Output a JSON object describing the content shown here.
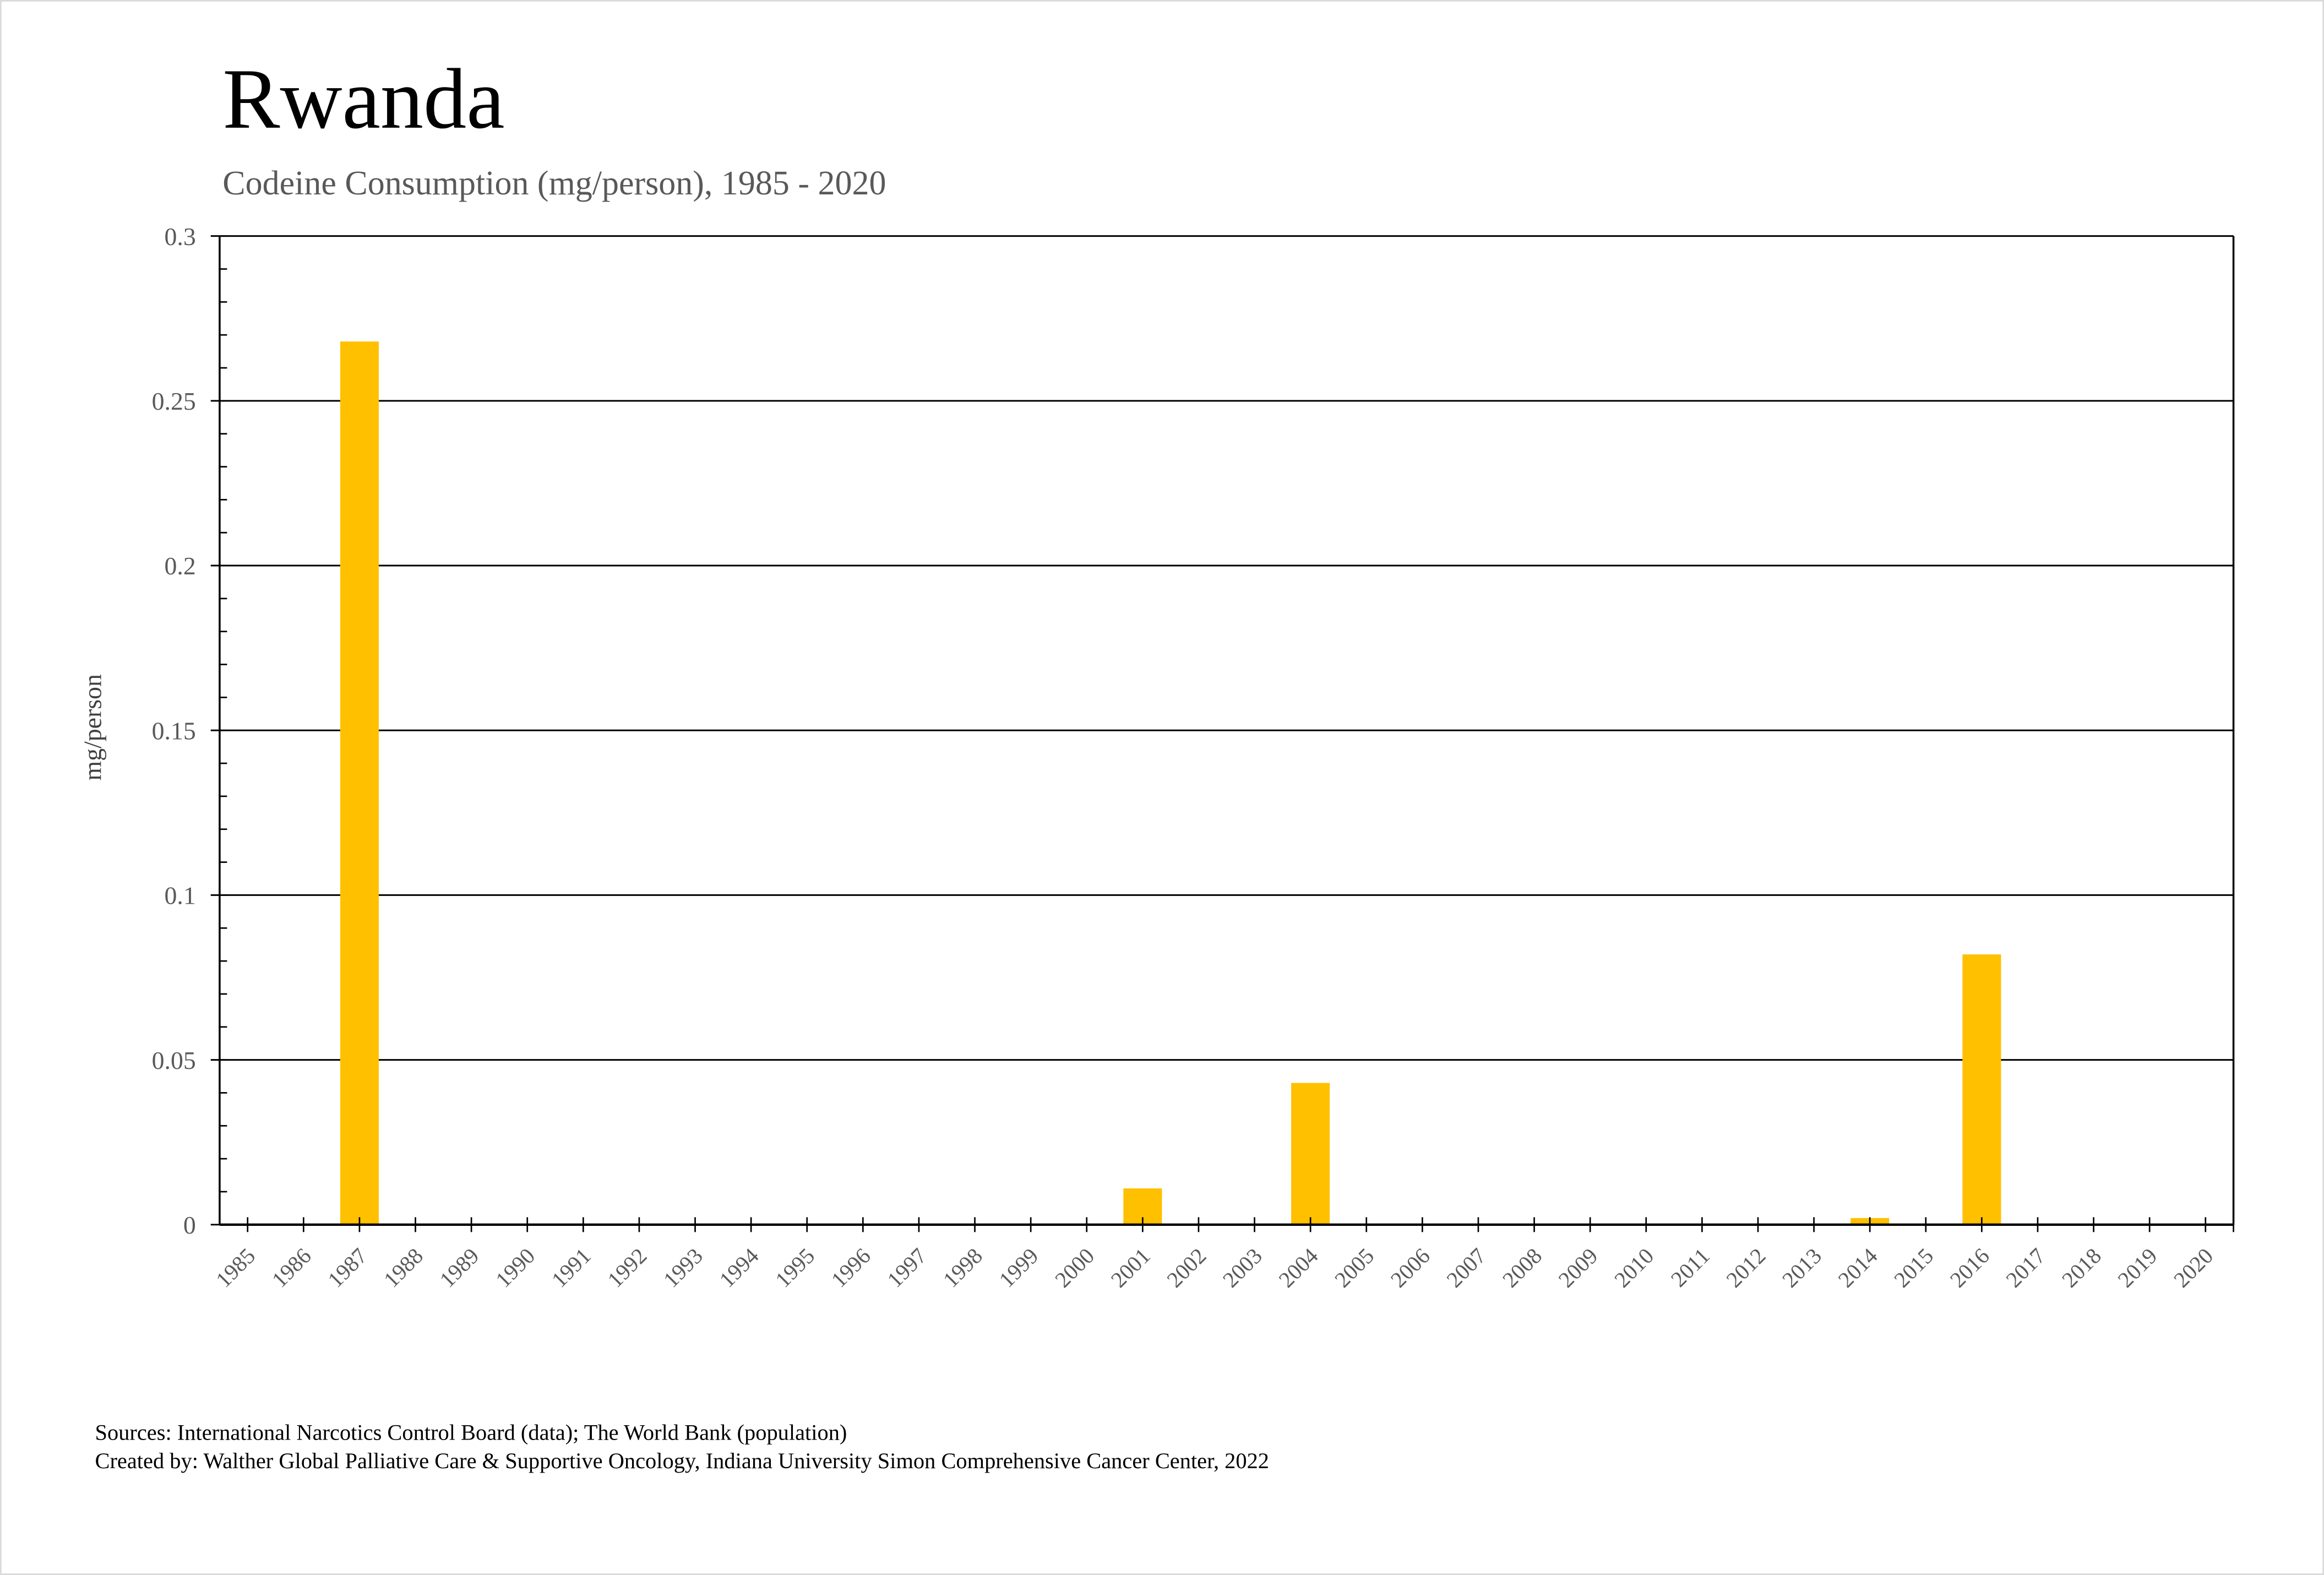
{
  "chart_data": {
    "type": "bar",
    "title": "Rwanda",
    "subtitle": "Codeine Consumption (mg/person), 1985 - 2020",
    "xlabel": "",
    "ylabel": "mg/person",
    "ylim": [
      0,
      0.3
    ],
    "yticks": [
      "0",
      "0.05",
      "0.1",
      "0.15",
      "0.2",
      "0.25",
      "0.3"
    ],
    "ytick_values": [
      0,
      0.05,
      0.1,
      0.15,
      0.2,
      0.25,
      0.3
    ],
    "grid": true,
    "categories": [
      "1985",
      "1986",
      "1987",
      "1988",
      "1989",
      "1990",
      "1991",
      "1992",
      "1993",
      "1994",
      "1995",
      "1996",
      "1997",
      "1998",
      "1999",
      "2000",
      "2001",
      "2002",
      "2003",
      "2004",
      "2005",
      "2006",
      "2007",
      "2008",
      "2009",
      "2010",
      "2011",
      "2012",
      "2013",
      "2014",
      "2015",
      "2016",
      "2017",
      "2018",
      "2019",
      "2020"
    ],
    "values": [
      0,
      0,
      0.268,
      0,
      0,
      0,
      0,
      0,
      0,
      0,
      0,
      0,
      0,
      0,
      0,
      0,
      0.011,
      0,
      0,
      0.043,
      0,
      0,
      0,
      0,
      0,
      0,
      0,
      0,
      0,
      0.002,
      0,
      0.082,
      0,
      0,
      0,
      0
    ],
    "bar_color": "#FFC000"
  },
  "footer": {
    "sources": "Sources: International Narcotics Control Board (data); The World Bank (population)",
    "created_by": "Created by: Walther Global Palliative Care & Supportive Oncology, Indiana University Simon Comprehensive Cancer Center, 2022"
  }
}
